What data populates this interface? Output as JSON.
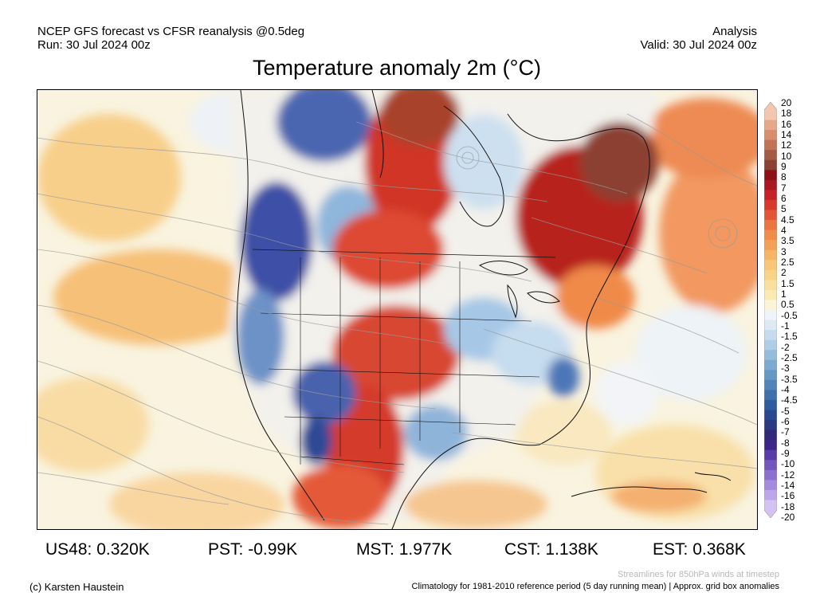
{
  "header": {
    "left_line1": "NCEP GFS forecast vs CFSR reanalysis @0.5deg",
    "left_line2": "Run: 30 Jul 2024 00z",
    "right_line1": "Analysis",
    "right_line2": "Valid: 30 Jul 2024 00z",
    "title": "Temperature anomaly 2m (°C)"
  },
  "colorbar": {
    "labels": [
      "20",
      "18",
      "16",
      "14",
      "12",
      "10",
      "9",
      "8",
      "7",
      "6",
      "5",
      "4.5",
      "4",
      "3.5",
      "3",
      "2.5",
      "2",
      "1.5",
      "1",
      "0.5",
      "-0.5",
      "-1",
      "-1.5",
      "-2",
      "-2.5",
      "-3",
      "-3.5",
      "-4",
      "-4.5",
      "-5",
      "-6",
      "-7",
      "-8",
      "-9",
      "-10",
      "-12",
      "-14",
      "-16",
      "-18",
      "-20"
    ],
    "colors": [
      "#f3c6b0",
      "#e6a888",
      "#d88e6c",
      "#c07357",
      "#a45a45",
      "#8a4032",
      "#8c1018",
      "#a81820",
      "#c42226",
      "#d63a2c",
      "#e25636",
      "#ec7440",
      "#f08c48",
      "#f4a054",
      "#f6b464",
      "#f8c676",
      "#f9d488",
      "#fae09c",
      "#fbeab4",
      "#fbf4d8",
      "#eef4fa",
      "#dde9f4",
      "#c6dcee",
      "#aecde6",
      "#96bcdc",
      "#7eaad2",
      "#6698c6",
      "#5084ba",
      "#3e70ac",
      "#2e5c9e",
      "#2a4890",
      "#2c3882",
      "#302a78",
      "#3c2488",
      "#5a3ca8",
      "#7456be",
      "#8c70d0",
      "#a68ade",
      "#bea6ea",
      "#d4c2f2"
    ]
  },
  "stats": [
    {
      "label": "US48:",
      "value": "0.320K"
    },
    {
      "label": "PST:",
      "value": "-0.99K"
    },
    {
      "label": "MST:",
      "value": "1.977K"
    },
    {
      "label": "CST:",
      "value": "1.138K"
    },
    {
      "label": "EST:",
      "value": "0.368K"
    }
  ],
  "footer": {
    "streamlines": "Streamlines for 850hPa winds at timestep",
    "copyright": "(c) Karsten Haustein",
    "climatology": "Climatology for 1981-2010 reference period (5 day running mean) | Approx. grid box anomalies"
  }
}
